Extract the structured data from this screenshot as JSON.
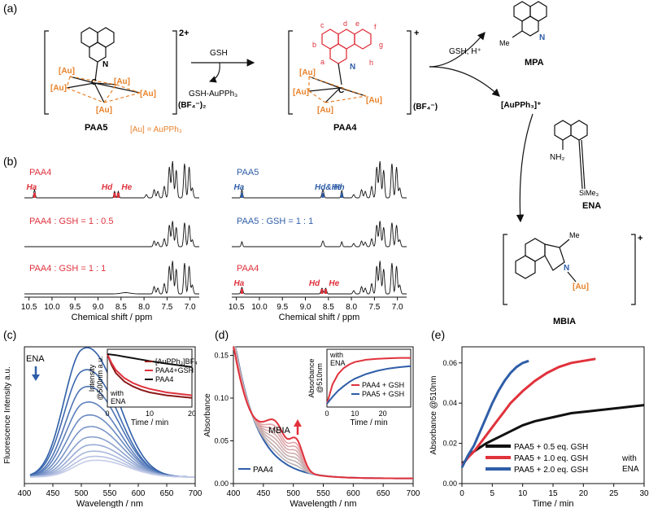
{
  "panels": {
    "a": "(a)",
    "b": "(b)",
    "c": "(c)",
    "d": "(d)",
    "e": "(e)"
  },
  "colors": {
    "red": "#e0323c",
    "blue": "#2f5ea8",
    "orange": "#e8822a",
    "black": "#111111",
    "grey": "#b5b5b5"
  },
  "scheme": {
    "paa5_label": "PAA5",
    "paa4_label": "PAA4",
    "charge_2plus": "2+",
    "charge_plus": "+",
    "bf4_2": "(BF₄⁻)₂",
    "bf4": "(BF₄⁻)",
    "au": "[Au]",
    "au_def": "[Au] = AuPPh₃",
    "carbon": "C",
    "nitrogen": "N",
    "gsh": "GSH",
    "gsh_au": "GSH-AuPPh₃",
    "gsh_h": "GSH, H⁺",
    "mpa_label": "MPA",
    "me": "Me",
    "auph3": "[AuPPh₃]⁺",
    "ena_label": "ENA",
    "nh2": "NH₂",
    "sime3": "SiMe₃",
    "mbia_label": "MBIA",
    "ring_letters": [
      "a",
      "b",
      "c",
      "d",
      "e",
      "f",
      "g",
      "h"
    ]
  },
  "nmr_left": {
    "traces": [
      {
        "label": "PAA4",
        "color": "#e0323c",
        "peaks": [
          "Ha",
          "Hd",
          "He"
        ]
      },
      {
        "label": "PAA4 : GSH = 1 : 0.5",
        "color": "#e0323c",
        "peaks": []
      },
      {
        "label": "PAA4 : GSH = 1 : 1",
        "color": "#e0323c",
        "peaks": []
      }
    ],
    "ticks": [
      "10.5",
      "10.0",
      "9.5",
      "9.0",
      "8.5",
      "8.0",
      "7.5",
      "7.0"
    ],
    "xlabel": "Chemical shift / ppm"
  },
  "nmr_right": {
    "traces": [
      {
        "label": "PAA5",
        "color": "#2f5ea8",
        "peaks": [
          "Ha",
          "Hd&He",
          "Hh"
        ]
      },
      {
        "label": "PAA5 : GSH = 1 : 1",
        "color": "#2f5ea8",
        "peaks": []
      },
      {
        "label": "PAA4",
        "color": "#e0323c",
        "peaks": [
          "Ha",
          "Hd",
          "He"
        ]
      }
    ],
    "ticks": [
      "10.5",
      "10.0",
      "9.5",
      "9.0",
      "8.5",
      "8.0",
      "7.5",
      "7.0"
    ],
    "xlabel": "Chemical shift / ppm"
  },
  "chart_data": [
    {
      "panel": "c",
      "type": "line",
      "title": "",
      "xlabel": "Wavelength / nm",
      "ylabel": "Fluorescence Intensity a.u.",
      "xlim": [
        400,
        700
      ],
      "x_ticks": [
        400,
        450,
        500,
        550,
        600,
        650,
        700
      ],
      "annotation": "ENA",
      "series": [
        {
          "name": "t0",
          "peak_wavelength": 500,
          "peak": 1.0
        },
        {
          "name": "t1",
          "peak_wavelength": 500,
          "peak": 0.83
        },
        {
          "name": "t2",
          "peak_wavelength": 502,
          "peak": 0.7
        },
        {
          "name": "t3",
          "peak_wavelength": 503,
          "peak": 0.58
        },
        {
          "name": "t4",
          "peak_wavelength": 505,
          "peak": 0.48
        },
        {
          "name": "t5",
          "peak_wavelength": 507,
          "peak": 0.39
        },
        {
          "name": "t6",
          "peak_wavelength": 509,
          "peak": 0.31
        },
        {
          "name": "t7",
          "peak_wavelength": 511,
          "peak": 0.25
        },
        {
          "name": "t8",
          "peak_wavelength": 513,
          "peak": 0.2
        },
        {
          "name": "t9",
          "peak_wavelength": 515,
          "peak": 0.16
        },
        {
          "name": "t10",
          "peak_wavelength": 517,
          "peak": 0.13
        }
      ],
      "inset": {
        "xlabel": "Time / min",
        "ylabel_lines": [
          "Intensity",
          "@500nm a.u."
        ],
        "xlim": [
          0,
          20
        ],
        "x_ticks": [
          0,
          10,
          20
        ],
        "note_lines": [
          "with",
          "ENA"
        ],
        "series": [
          {
            "name": "[AuPPh₃]BF₄",
            "color": "#8b1a1a",
            "x": [
              0,
              1,
              2,
              4,
              6,
              8,
              10,
              14,
              20
            ],
            "y": [
              1.0,
              0.78,
              0.62,
              0.45,
              0.35,
              0.28,
              0.23,
              0.17,
              0.12
            ]
          },
          {
            "name": "PAA4+GSH",
            "color": "#e0323c",
            "x": [
              0,
              1,
              2,
              4,
              6,
              8,
              10,
              14,
              20
            ],
            "y": [
              1.0,
              0.82,
              0.68,
              0.52,
              0.42,
              0.35,
              0.3,
              0.23,
              0.17
            ]
          },
          {
            "name": "PAA4",
            "color": "#111111",
            "x": [
              0,
              2,
              4,
              6,
              8,
              10,
              14,
              20
            ],
            "y": [
              1.0,
              0.98,
              0.95,
              0.92,
              0.89,
              0.86,
              0.81,
              0.74
            ]
          }
        ]
      }
    },
    {
      "panel": "d",
      "type": "line",
      "xlabel": "Wavelength / nm",
      "ylabel": "Absorbance",
      "xlim": [
        400,
        700
      ],
      "ylim": [
        0,
        0.16
      ],
      "x_ticks": [
        400,
        450,
        500,
        550,
        600,
        650,
        700
      ],
      "y_ticks": [
        0.0,
        0.05,
        0.1,
        0.15
      ],
      "y_tick_labels": [
        "0.00",
        "0.05",
        "0.10",
        "0.15"
      ],
      "annotation": "MBIA",
      "legend": "PAA4",
      "series": [
        {
          "name": "initial",
          "mbia_amplitude": 0.0
        },
        {
          "name": "s1",
          "mbia_amplitude": 0.12
        },
        {
          "name": "s2",
          "mbia_amplitude": 0.24
        },
        {
          "name": "s3",
          "mbia_amplitude": 0.36
        },
        {
          "name": "s4",
          "mbia_amplitude": 0.48
        },
        {
          "name": "s5",
          "mbia_amplitude": 0.6
        },
        {
          "name": "s6",
          "mbia_amplitude": 0.72
        },
        {
          "name": "s7",
          "mbia_amplitude": 0.84
        },
        {
          "name": "final",
          "mbia_amplitude": 1.0
        }
      ],
      "inset": {
        "xlabel": "Time / min",
        "ylabel_lines": [
          "Absorbance",
          "@510nm"
        ],
        "xlim": [
          0,
          30
        ],
        "x_ticks": [
          0,
          10,
          20
        ],
        "note_lines": [
          "with",
          "ENA"
        ],
        "series": [
          {
            "name": "PAA4 + GSH",
            "color": "#e0323c",
            "x": [
              0,
              2,
              4,
              6,
              8,
              10,
              14,
              18,
              22,
              26,
              30
            ],
            "y": [
              0.0,
              0.42,
              0.64,
              0.77,
              0.85,
              0.9,
              0.95,
              0.97,
              0.98,
              0.99,
              0.99
            ]
          },
          {
            "name": "PAA5 + GSH",
            "color": "#2f5ea8",
            "x": [
              0,
              2,
              4,
              6,
              8,
              10,
              14,
              18,
              22,
              26,
              30
            ],
            "y": [
              0.0,
              0.15,
              0.28,
              0.38,
              0.47,
              0.54,
              0.64,
              0.71,
              0.76,
              0.79,
              0.81
            ]
          }
        ]
      }
    },
    {
      "panel": "e",
      "type": "line",
      "xlabel": "Time / min",
      "ylabel": "Absorbance @510nm",
      "xlim": [
        0,
        30
      ],
      "ylim": [
        0,
        0.068
      ],
      "x_ticks": [
        0,
        5,
        10,
        15,
        20,
        25,
        30
      ],
      "y_ticks": [
        0.0,
        0.02,
        0.04,
        0.06
      ],
      "y_tick_labels": [
        "0.00",
        "0.02",
        "0.04",
        "0.06"
      ],
      "legend_note_lines": [
        "with",
        "ENA"
      ],
      "series": [
        {
          "name": "PAA5 + 0.5 eq. GSH",
          "color": "#111111",
          "x": [
            0,
            0.5,
            1,
            1.5,
            2,
            3,
            4,
            6,
            8,
            10,
            12,
            15,
            18,
            21,
            24,
            27,
            30
          ],
          "y": [
            0.01,
            0.011,
            0.013,
            0.015,
            0.016,
            0.018,
            0.02,
            0.023,
            0.026,
            0.029,
            0.031,
            0.033,
            0.035,
            0.036,
            0.037,
            0.038,
            0.039
          ]
        },
        {
          "name": "PAA5 + 1.0 eq. GSH",
          "color": "#e0323c",
          "x": [
            0,
            0.5,
            1,
            2,
            3,
            4,
            5,
            6,
            7,
            8,
            10,
            12,
            14,
            16,
            18,
            20,
            22
          ],
          "y": [
            0.009,
            0.011,
            0.013,
            0.016,
            0.02,
            0.024,
            0.028,
            0.032,
            0.036,
            0.04,
            0.046,
            0.051,
            0.055,
            0.058,
            0.06,
            0.061,
            0.062
          ]
        },
        {
          "name": "PAA5 + 2.0 eq. GSH",
          "color": "#2f5ea8",
          "x": [
            0,
            0.5,
            1,
            2,
            3,
            4,
            5,
            6,
            7,
            8,
            9,
            10,
            11
          ],
          "y": [
            0.008,
            0.011,
            0.014,
            0.019,
            0.026,
            0.033,
            0.04,
            0.046,
            0.051,
            0.055,
            0.058,
            0.06,
            0.061
          ]
        }
      ]
    }
  ]
}
